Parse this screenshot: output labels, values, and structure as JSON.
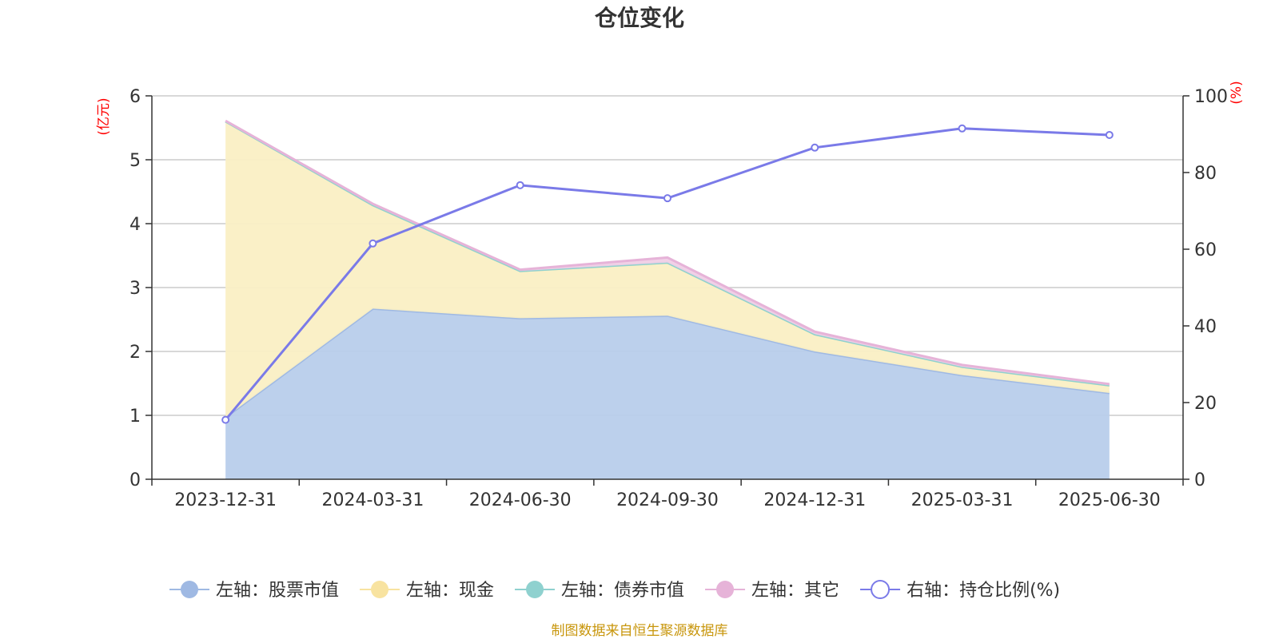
{
  "chart_data": {
    "type": "area",
    "title": "仓位变化",
    "categories": [
      "2023-12-31",
      "2024-03-31",
      "2024-06-30",
      "2024-09-30",
      "2024-12-31",
      "2025-03-31",
      "2025-06-30"
    ],
    "left_axis": {
      "unit": "(亿元)",
      "min": 0,
      "max": 6,
      "ticks": [
        "0",
        "1",
        "2",
        "3",
        "4",
        "5",
        "6"
      ]
    },
    "right_axis": {
      "unit": "(%)",
      "min": 0,
      "max": 100,
      "ticks": [
        "0",
        "20",
        "40",
        "60",
        "80",
        "100"
      ]
    },
    "stacked": true,
    "grid": true,
    "legend_position": "bottom",
    "series": [
      {
        "name": "左轴：股票市值",
        "axis": "left",
        "kind": "area",
        "color": "#9fb9e3",
        "fill": "#b8cdeb",
        "values": [
          0.97,
          2.67,
          2.52,
          2.56,
          2.0,
          1.63,
          1.35
        ]
      },
      {
        "name": "左轴：现金",
        "axis": "left",
        "kind": "area",
        "color": "#f8e3a0",
        "fill": "#faefc4",
        "values": [
          4.63,
          1.62,
          0.74,
          0.83,
          0.27,
          0.13,
          0.12
        ]
      },
      {
        "name": "左轴：债券市值",
        "axis": "left",
        "kind": "area",
        "color": "#8fd1cf",
        "fill": "#bde6e4",
        "values": [
          0,
          0,
          0,
          0,
          0,
          0,
          0
        ]
      },
      {
        "name": "左轴：其它",
        "axis": "left",
        "kind": "area",
        "color": "#e6b3d8",
        "fill": "#f0cfe6",
        "values": [
          0.01,
          0.02,
          0.02,
          0.08,
          0.04,
          0.03,
          0.02
        ]
      },
      {
        "name": "右轴：持仓比例(%)",
        "axis": "right",
        "kind": "line",
        "color": "#7a7ae8",
        "values": [
          15.5,
          61.5,
          76.7,
          73.3,
          86.5,
          91.5,
          89.8
        ]
      }
    ]
  },
  "footer": {
    "source": "制图数据来自恒生聚源数据库"
  },
  "colors": {
    "unit": "#ff0000",
    "source": "#c8960c",
    "axis": "#333333",
    "grid": "#cccccc"
  }
}
